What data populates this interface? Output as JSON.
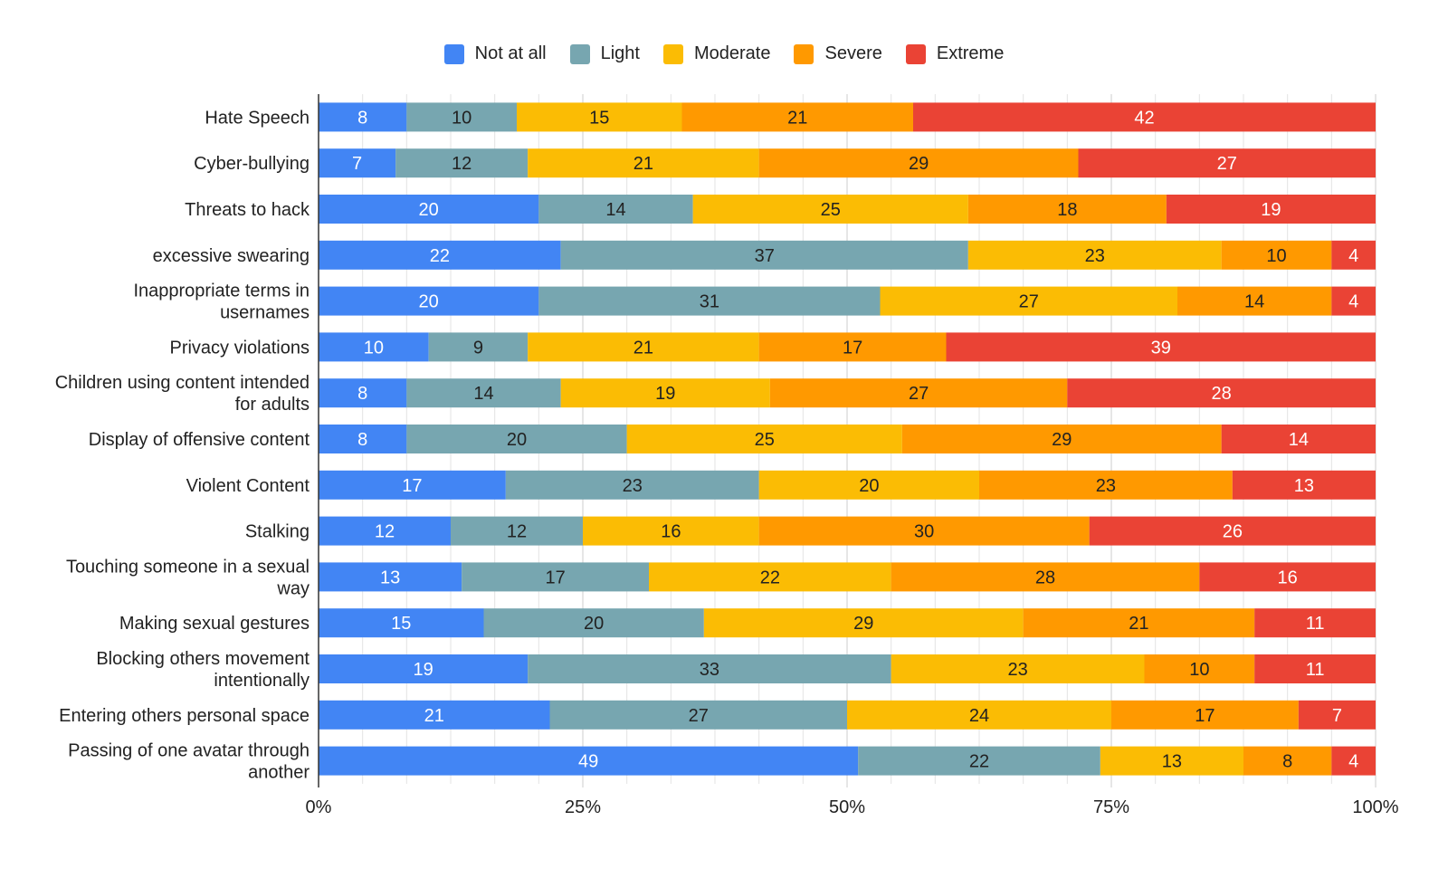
{
  "chart_data": {
    "type": "bar",
    "orientation": "horizontal",
    "stacked": "percent",
    "title": "",
    "xlabel": "",
    "ylabel": "",
    "xlim": [
      0,
      100
    ],
    "x_ticks": [
      "0%",
      "25%",
      "50%",
      "75%",
      "100%"
    ],
    "legend_position": "top-center",
    "categories": [
      "Hate Speech",
      "Cyber-bullying",
      "Threats to hack",
      "excessive swearing",
      "Inappropriate terms in usernames",
      "Privacy violations",
      "Children using content intended for adults",
      "Display of offensive content",
      "Violent Content",
      "Stalking",
      "Touching someone in a sexual way",
      "Making sexual gestures",
      "Blocking others movement intentionally",
      "Entering others personal space",
      "Passing of one avatar through another"
    ],
    "category_lines": [
      [
        "Hate Speech"
      ],
      [
        "Cyber-bullying"
      ],
      [
        "Threats to hack"
      ],
      [
        "excessive swearing"
      ],
      [
        "Inappropriate terms in",
        "usernames"
      ],
      [
        "Privacy violations"
      ],
      [
        "Children using content intended",
        "for adults"
      ],
      [
        "Display of offensive content"
      ],
      [
        "Violent Content"
      ],
      [
        "Stalking"
      ],
      [
        "Touching someone in a sexual",
        "way"
      ],
      [
        "Making sexual gestures"
      ],
      [
        "Blocking others movement",
        "intentionally"
      ],
      [
        "Entering others personal space"
      ],
      [
        "Passing of one avatar through",
        "another"
      ]
    ],
    "series": [
      {
        "name": "Not at all",
        "color": "#4285f4",
        "values": [
          8,
          7,
          20,
          22,
          20,
          10,
          8,
          8,
          17,
          12,
          13,
          15,
          19,
          21,
          49
        ]
      },
      {
        "name": "Light",
        "color": "#77a6b0",
        "values": [
          10,
          12,
          14,
          37,
          31,
          9,
          14,
          20,
          23,
          12,
          17,
          20,
          33,
          27,
          22
        ]
      },
      {
        "name": "Moderate",
        "color": "#fbbc04",
        "values": [
          15,
          21,
          25,
          23,
          27,
          21,
          19,
          25,
          20,
          16,
          22,
          29,
          23,
          24,
          13
        ]
      },
      {
        "name": "Severe",
        "color": "#ff9900",
        "values": [
          21,
          29,
          18,
          10,
          14,
          17,
          27,
          29,
          23,
          30,
          28,
          21,
          10,
          17,
          8
        ]
      },
      {
        "name": "Extreme",
        "color": "#ea4335",
        "values": [
          42,
          27,
          19,
          4,
          4,
          39,
          28,
          14,
          13,
          26,
          16,
          11,
          11,
          7,
          4
        ]
      }
    ]
  }
}
